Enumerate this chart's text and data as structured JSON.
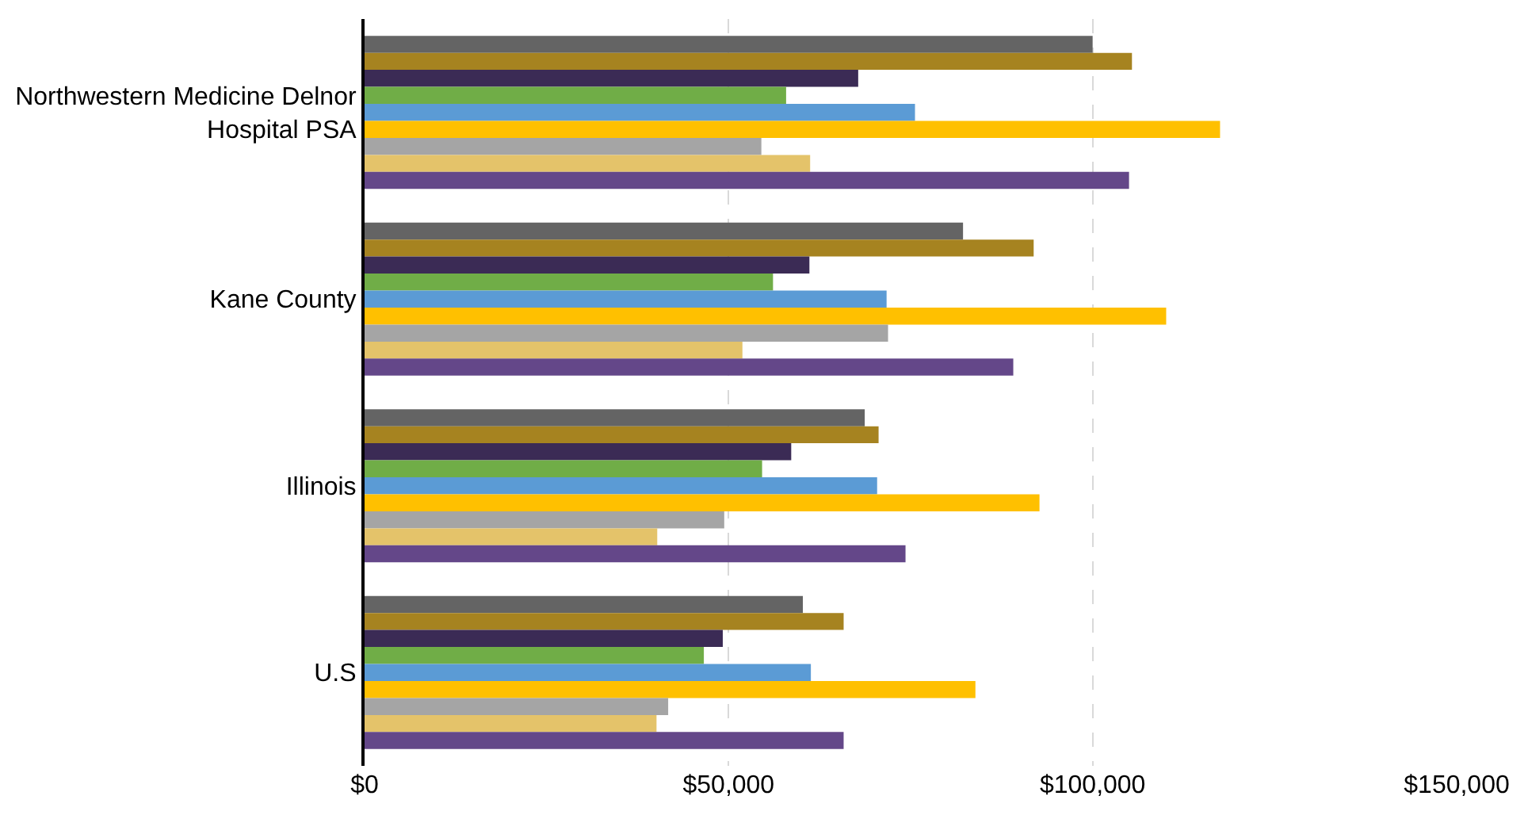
{
  "chart_data": {
    "type": "bar",
    "orientation": "horizontal",
    "categories": [
      "Northwestern Medicine Delnor Hospital PSA",
      "Kane County",
      "Illinois",
      "U.S"
    ],
    "series": [
      {
        "color": "#646464",
        "values": [
          100000,
          82200,
          68700,
          60200
        ]
      },
      {
        "color": "#a68320",
        "values": [
          105400,
          91900,
          70600,
          65800
        ]
      },
      {
        "color": "#3b2b55",
        "values": [
          67800,
          61100,
          58600,
          49200
        ]
      },
      {
        "color": "#70ad47",
        "values": [
          57900,
          56100,
          54600,
          46600
        ]
      },
      {
        "color": "#5b9bd5",
        "values": [
          75600,
          71700,
          70400,
          61300
        ]
      },
      {
        "color": "#ffc000",
        "values": [
          117500,
          110100,
          92700,
          83900
        ]
      },
      {
        "color": "#a5a5a5",
        "values": [
          54500,
          71900,
          49400,
          41700
        ]
      },
      {
        "color": "#e4c36a",
        "values": [
          61200,
          51900,
          40200,
          40100
        ]
      },
      {
        "color": "#644789",
        "values": [
          105000,
          89100,
          74300,
          65800
        ]
      }
    ],
    "xlim": [
      0,
      150000
    ],
    "xticks": [
      {
        "value": 0,
        "label": "$0"
      },
      {
        "value": 50000,
        "label": "$50,000"
      },
      {
        "value": 100000,
        "label": "$100,000"
      },
      {
        "value": 150000,
        "label": "$150,000"
      }
    ],
    "grid": "x",
    "legend": false
  }
}
